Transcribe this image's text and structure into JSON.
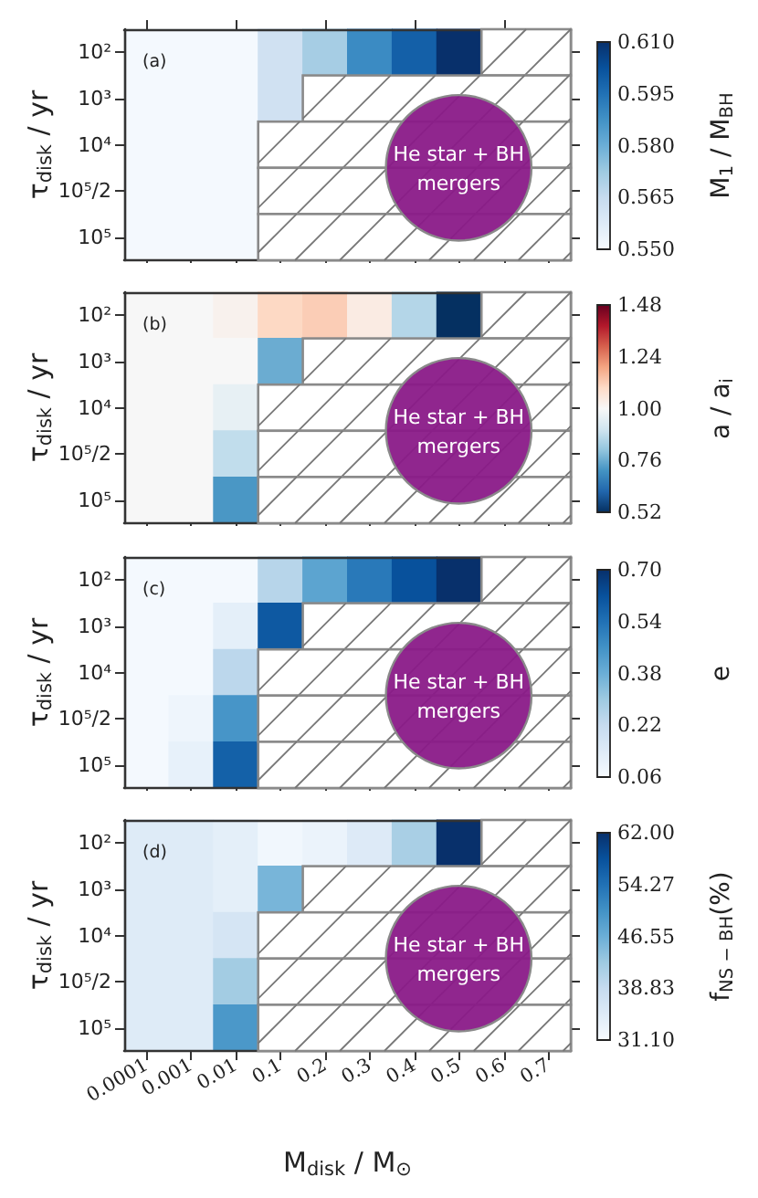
{
  "chart_data": [
    {
      "type": "heatmap",
      "title": "(a)",
      "ylabel": "τ$_{disk}$ / yr",
      "clabel": "M$_{1}$ / M$_{BH}$",
      "annotations": [
        "He star + BH mergers"
      ],
      "tick_labels": "y",
      "categories": [
        "0.0001",
        "0.001",
        "0.01",
        "0.1",
        "0.2",
        "0.3",
        "0.4",
        "0.5",
        "0.6",
        "0.7"
      ],
      "y_categories": [
        "10²",
        "10³",
        "10⁴",
        "10⁵/2",
        "10⁵"
      ],
      "cells": [
        [
          0.551,
          0.551,
          0.551,
          0.562,
          0.571,
          0.589,
          0.599,
          0.61,
          null,
          null
        ],
        [
          0.551,
          0.551,
          0.551,
          0.562,
          null,
          null,
          null,
          null,
          null,
          null
        ],
        [
          0.551,
          0.551,
          0.551,
          null,
          null,
          null,
          null,
          null,
          null,
          null
        ],
        [
          0.551,
          0.551,
          0.551,
          null,
          null,
          null,
          null,
          null,
          null,
          null
        ],
        [
          0.551,
          0.551,
          0.551,
          null,
          null,
          null,
          null,
          null,
          null,
          null
        ]
      ],
      "clim": [
        0.55,
        0.61
      ],
      "cticks": [
        {
          "value": 0.55,
          "label": "0.550"
        },
        0.565,
        {
          "value": 0.58,
          "label": "0.580"
        },
        0.595,
        {
          "value": 0.61,
          "label": "0.610"
        }
      ],
      "colors": [
        "#f7fbff",
        "#deebf7",
        "#c6dbef",
        "#9ecae1",
        "#6baed6",
        "#4292c6",
        "#2171b5",
        "#08519c",
        "#08306b"
      ]
    },
    {
      "type": "heatmap",
      "title": "(b)",
      "ylabel": "τ$_{disk}$ / yr",
      "clabel": "a / a$_{i}$",
      "annotations": [
        "He star + BH mergers"
      ],
      "tick_labels": "y",
      "categories": [
        "0.0001",
        "0.001",
        "0.01",
        "0.1",
        "0.2",
        "0.3",
        "0.4",
        "0.5",
        "0.6",
        "0.7"
      ],
      "y_categories": [
        "10²",
        "10³",
        "10⁴",
        "10⁵/2",
        "10⁵"
      ],
      "cells": [
        [
          1.0,
          1.0,
          1.02,
          1.1,
          1.12,
          1.04,
          0.86,
          0.52,
          null,
          null
        ],
        [
          1.0,
          1.0,
          1.0,
          0.76,
          null,
          null,
          null,
          null,
          null,
          null
        ],
        [
          1.0,
          1.0,
          0.96,
          null,
          null,
          null,
          null,
          null,
          null,
          null
        ],
        [
          1.0,
          1.0,
          0.88,
          null,
          null,
          null,
          null,
          null,
          null,
          null
        ],
        [
          1.0,
          1.0,
          0.72,
          null,
          null,
          null,
          null,
          null,
          null,
          null
        ]
      ],
      "clim": [
        0.52,
        1.48
      ],
      "cticks": [
        0.52,
        0.76,
        {
          "value": 1.0,
          "label": "1.00"
        },
        1.24,
        1.48
      ],
      "colors": [
        "#053061",
        "#2166ac",
        "#4393c3",
        "#92c5de",
        "#d1e5f0",
        "#f7f7f7",
        "#fddbc7",
        "#f4a582",
        "#d6604d",
        "#b2182b",
        "#67001f"
      ]
    },
    {
      "type": "heatmap",
      "title": "(c)",
      "ylabel": "τ$_{disk}$ / yr",
      "clabel": "e",
      "annotations": [
        "He star + BH mergers"
      ],
      "tick_labels": "y",
      "categories": [
        "0.0001",
        "0.001",
        "0.01",
        "0.1",
        "0.2",
        "0.3",
        "0.4",
        "0.5",
        "0.6",
        "0.7"
      ],
      "y_categories": [
        "10²",
        "10³",
        "10⁴",
        "10⁵/2",
        "10⁵"
      ],
      "cells": [
        [
          0.07,
          0.07,
          0.07,
          0.25,
          0.41,
          0.52,
          0.62,
          0.7,
          null,
          null
        ],
        [
          0.07,
          0.07,
          0.12,
          0.6,
          null,
          null,
          null,
          null,
          null,
          null
        ],
        [
          0.07,
          0.07,
          0.24,
          null,
          null,
          null,
          null,
          null,
          null,
          null
        ],
        [
          0.07,
          0.09,
          0.45,
          null,
          null,
          null,
          null,
          null,
          null,
          null
        ],
        [
          0.07,
          0.11,
          0.58,
          null,
          null,
          null,
          null,
          null,
          null,
          null
        ]
      ],
      "clim": [
        0.06,
        0.7
      ],
      "cticks": [
        0.06,
        0.22,
        0.38,
        0.54,
        {
          "value": 0.7,
          "label": "0.70"
        }
      ],
      "colors": [
        "#f7fbff",
        "#deebf7",
        "#c6dbef",
        "#9ecae1",
        "#6baed6",
        "#4292c6",
        "#2171b5",
        "#08519c",
        "#08306b"
      ]
    },
    {
      "type": "heatmap",
      "title": "(d)",
      "xlabel": "M$_{disk}$ / M$_{⊙}$",
      "ylabel": "τ$_{disk}$ / yr",
      "clabel": "f$_{NS − BH}$(%)",
      "annotations": [
        "He star + BH mergers"
      ],
      "categories": [
        "0.0001",
        "0.001",
        "0.01",
        "0.1",
        "0.2",
        "0.3",
        "0.4",
        "0.5",
        "0.6",
        "0.7"
      ],
      "y_categories": [
        "10²",
        "10³",
        "10⁴",
        "10⁵/2",
        "10⁵"
      ],
      "cells": [
        [
          35.0,
          35.0,
          34.0,
          32.0,
          33.0,
          35.1,
          41.6,
          62.0,
          null,
          null
        ],
        [
          35.0,
          35.0,
          34.0,
          45.6,
          null,
          null,
          null,
          null,
          null,
          null
        ],
        [
          35.0,
          35.0,
          36.4,
          null,
          null,
          null,
          null,
          null,
          null,
          null
        ],
        [
          35.0,
          35.0,
          42.2,
          null,
          null,
          null,
          null,
          null,
          null,
          null
        ],
        [
          35.0,
          35.0,
          49.6,
          null,
          null,
          null,
          null,
          null,
          null,
          null
        ]
      ],
      "clim": [
        31.1,
        62.0
      ],
      "cticks": [
        {
          "value": 31.1,
          "label": "31.10"
        },
        38.83,
        46.55,
        54.27,
        {
          "value": 62.0,
          "label": "62.00"
        }
      ],
      "colors": [
        "#f7fbff",
        "#deebf7",
        "#c6dbef",
        "#9ecae1",
        "#6baed6",
        "#4292c6",
        "#2171b5",
        "#08519c",
        "#08306b"
      ]
    }
  ]
}
